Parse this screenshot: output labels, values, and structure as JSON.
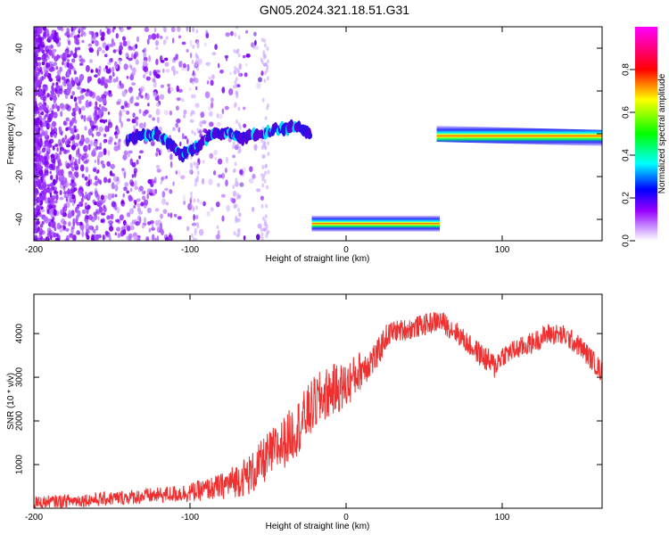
{
  "title": "GN05.2024.321.18.51.G31",
  "chart_data": [
    {
      "type": "heatmap",
      "name": "spectrogram",
      "xlabel": "Height of straight line (km)",
      "ylabel": "Frequency (Hz)",
      "xlim": [
        -200,
        164
      ],
      "ylim": [
        -50,
        50
      ],
      "xticks": [
        -200,
        -100,
        0,
        100
      ],
      "yticks": [
        -40,
        -20,
        0,
        20,
        40
      ],
      "colorbar": {
        "label": "Normalized spectral amplitude",
        "range": [
          0,
          1
        ],
        "ticks": [
          "0.0",
          "0.2",
          "0.4",
          "0.6",
          "0.8"
        ],
        "colormap": [
          "#ffffff",
          "#9900ff",
          "#0000ff",
          "#00ffff",
          "#00ff00",
          "#ffff00",
          "#ff0000",
          "#ff00ff"
        ]
      },
      "noise_region": {
        "x": [
          -200,
          -50
        ],
        "freq": [
          -50,
          50
        ],
        "amplitude": 0.15
      },
      "tracks": [
        {
          "x": [
            -140,
            -120,
            -105,
            -95,
            -85,
            -75,
            -65,
            -55,
            -45,
            -35,
            -28,
            -23
          ],
          "freq": [
            -2,
            0,
            -10,
            -6,
            0,
            0,
            -2,
            0,
            2,
            3,
            3,
            -1
          ],
          "amplitude": 0.3
        },
        {
          "x": [
            -22,
            60
          ],
          "freq": [
            -42,
            -42
          ],
          "amplitude": 0.6
        },
        {
          "x": [
            58,
            164
          ],
          "freq": [
            0,
            -2
          ],
          "amplitude": 0.75
        }
      ]
    },
    {
      "type": "line",
      "name": "snr",
      "xlabel": "Height of straight line (km)",
      "ylabel": "SNR (10 * v/v)",
      "xlim": [
        -200,
        164
      ],
      "ylim": [
        0,
        4900
      ],
      "xticks": [
        -200,
        -100,
        0,
        100
      ],
      "yticks": [
        1000,
        2000,
        3000,
        4000
      ],
      "color": "#ee3030",
      "series": [
        {
          "x": [
            -200,
            -180,
            -160,
            -140,
            -120,
            -100,
            -90,
            -80,
            -70,
            -60,
            -50,
            -40,
            -30,
            -20,
            -10,
            0,
            10,
            20,
            25,
            30,
            40,
            50,
            60,
            70,
            80,
            90,
            95,
            100,
            110,
            120,
            130,
            140,
            150,
            160,
            164
          ],
          "y": [
            120,
            170,
            200,
            250,
            300,
            360,
            430,
            500,
            650,
            800,
            1200,
            1500,
            1900,
            2400,
            2700,
            2800,
            3200,
            3500,
            3900,
            4050,
            4100,
            4200,
            4300,
            4050,
            3700,
            3400,
            3250,
            3500,
            3650,
            3800,
            4000,
            3950,
            3700,
            3300,
            3100
          ],
          "noise": [
            150,
            150,
            160,
            170,
            180,
            220,
            250,
            300,
            400,
            500,
            550,
            600,
            650,
            650,
            600,
            550,
            450,
            350,
            300,
            250,
            250,
            250,
            250,
            250,
            250,
            300,
            300,
            250,
            250,
            250,
            250,
            250,
            250,
            250,
            250
          ]
        }
      ]
    }
  ]
}
